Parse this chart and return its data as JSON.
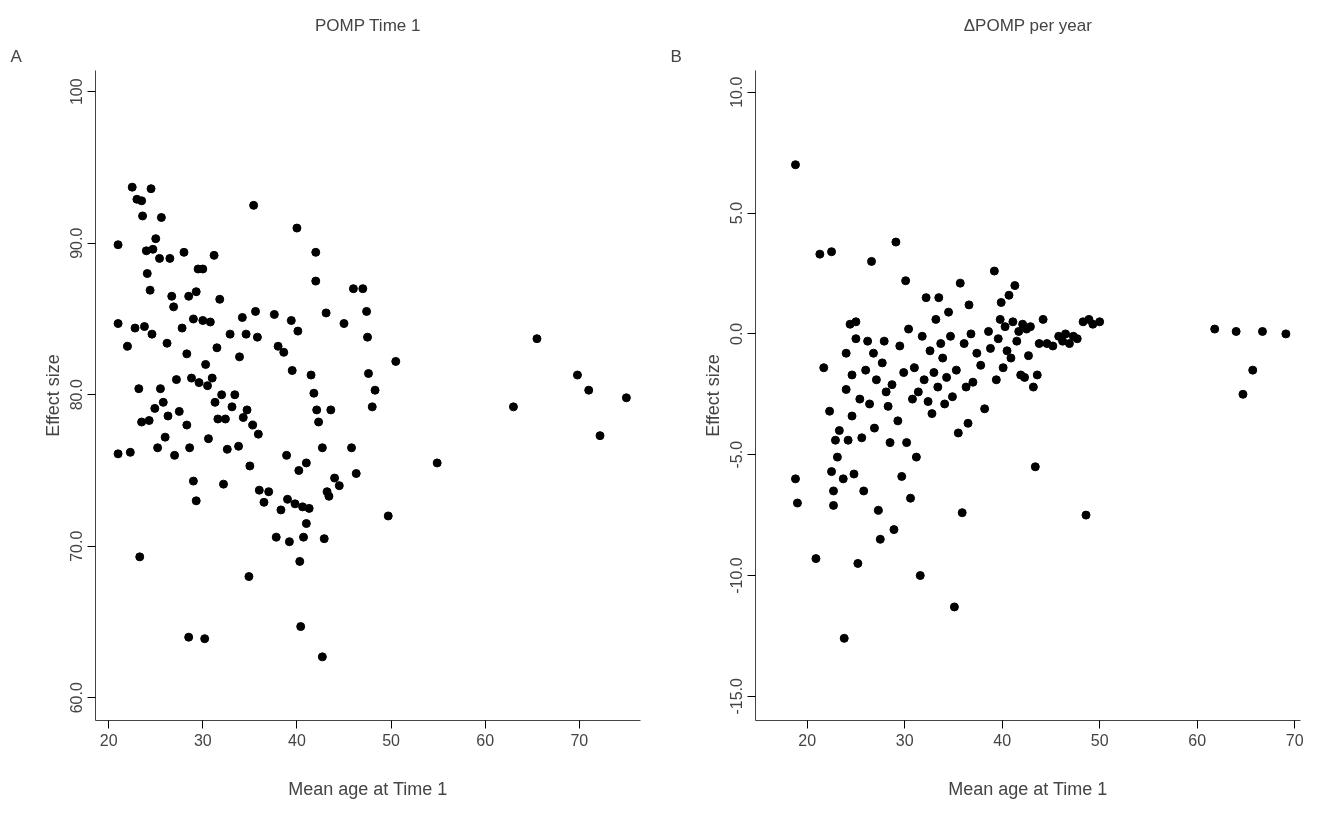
{
  "chart_data": [
    {
      "type": "scatter",
      "title": "POMP Time 1",
      "annotations": [
        "A"
      ],
      "xlabel": "Mean age at Time 1",
      "ylabel": "Effect size",
      "marker": "circle",
      "grid": false,
      "color": "#000000",
      "xlim": [
        18.6,
        76.5
      ],
      "ylim": [
        58.5,
        101.4
      ],
      "xticks": [
        20,
        30,
        40,
        50,
        60,
        70
      ],
      "yticks": [
        {
          "value": 60,
          "label": "60.0"
        },
        {
          "value": 70,
          "label": "70.0"
        },
        {
          "value": 80,
          "label": "80.0"
        },
        {
          "value": 90,
          "label": "90.0"
        },
        100
      ],
      "x": [
        21,
        21,
        21,
        22,
        22.3,
        22.5,
        22.8,
        23,
        23.2,
        23.3,
        23.5,
        23.6,
        23.5,
        23.8,
        24,
        24.1,
        24.3,
        24.4,
        24.5,
        24.6,
        24.7,
        24.9,
        25,
        25.2,
        25.4,
        25.6,
        25.5,
        25.8,
        26,
        26.2,
        26.3,
        26.5,
        26.7,
        26.9,
        27,
        27.2,
        27.5,
        27.8,
        28,
        28.3,
        28.5,
        28.3,
        28.5,
        28.6,
        28.8,
        29,
        29,
        29.3,
        29.3,
        29.5,
        29.6,
        30,
        30,
        30.2,
        30.3,
        30.5,
        30.6,
        30.8,
        31,
        31.2,
        31.3,
        31.5,
        31.6,
        31.8,
        32,
        32.2,
        32.4,
        32.6,
        32.9,
        33.1,
        33.4,
        33.8,
        33.9,
        34.2,
        34.3,
        34.6,
        34.7,
        34.9,
        35,
        35.3,
        35.4,
        35.6,
        35.8,
        35.9,
        36,
        36.5,
        37,
        37.6,
        37.8,
        38,
        38.3,
        38.6,
        38.9,
        39,
        39.2,
        39.4,
        39.5,
        39.8,
        40,
        40.1,
        40.2,
        40.3,
        40.4,
        40.6,
        40.7,
        41,
        41,
        41.3,
        41.5,
        41.8,
        42,
        42,
        42.1,
        42.3,
        42.7,
        42.7,
        42.9,
        43.1,
        43.2,
        43.4,
        43.6,
        44,
        44.5,
        45,
        45.8,
        46,
        46.3,
        47,
        47.4,
        47.5,
        47.6,
        48,
        48.3,
        49.7,
        50.5,
        54.9,
        63,
        65.5,
        69.8,
        71,
        72.2,
        75
      ],
      "values": [
        76.1,
        89.9,
        84.7,
        83.2,
        76.2,
        93.7,
        84.4,
        92.9,
        80.4,
        69.3,
        78.2,
        91.8,
        92.8,
        84.5,
        89.5,
        88,
        78.3,
        86.9,
        93.6,
        84,
        89.6,
        79.1,
        90.3,
        76.5,
        89,
        91.7,
        80.4,
        79.5,
        77.2,
        83.4,
        78.6,
        89,
        86.5,
        85.8,
        76,
        81,
        78.9,
        84.4,
        89.4,
        82.7,
        86.5,
        78,
        64,
        76.5,
        81.1,
        85,
        74.3,
        86.8,
        73,
        88.3,
        80.8,
        88.3,
        84.9,
        63.9,
        82,
        80.6,
        77.1,
        84.8,
        81.1,
        89.2,
        79.5,
        83.1,
        78.4,
        86.3,
        80,
        74.1,
        78.4,
        76.4,
        84,
        79.2,
        80,
        76.6,
        82.5,
        85.1,
        78.5,
        84,
        79,
        68,
        75.3,
        78,
        92.5,
        85.5,
        83.8,
        77.4,
        73.7,
        72.9,
        73.6,
        85.3,
        70.6,
        83.2,
        72.4,
        82.8,
        76,
        73.1,
        70.3,
        84.9,
        81.6,
        72.8,
        91,
        84.2,
        75,
        69,
        64.7,
        72.6,
        70.6,
        75.5,
        71.5,
        72.5,
        81.3,
        80.1,
        89.4,
        87.5,
        79,
        78.2,
        76.5,
        62.7,
        70.5,
        85.4,
        73.6,
        73.3,
        79,
        74.5,
        74,
        84.7,
        76.5,
        87,
        74.8,
        87,
        85.5,
        83.8,
        81.4,
        79.2,
        80.3,
        72,
        82.2,
        75.5,
        79.2,
        83.7,
        81.3,
        80.3,
        77.3,
        79.8
      ]
    },
    {
      "type": "scatter",
      "title": "ΔPOMP per year",
      "annotations": [
        "B"
      ],
      "xlabel": "Mean age at Time 1",
      "ylabel": "Effect size",
      "marker": "circle",
      "grid": false,
      "color": "#000000",
      "xlim": [
        14.7,
        70.6
      ],
      "ylim": [
        -16,
        10.9
      ],
      "xticks": [
        20,
        30,
        40,
        50,
        60,
        70
      ],
      "yticks": [
        {
          "value": -15,
          "label": "-15.0"
        },
        {
          "value": -10,
          "label": "-10.0"
        },
        {
          "value": -5,
          "label": "-5.0"
        },
        {
          "value": 0,
          "label": "0.0"
        },
        {
          "value": 5,
          "label": "5.0"
        },
        {
          "value": 10,
          "label": "10.0"
        }
      ],
      "x": [
        18.8,
        18.8,
        19.0,
        20.9,
        21.3,
        21.7,
        22.3,
        22.5,
        22.5,
        22.7,
        22.7,
        22.9,
        23.1,
        23.3,
        23.7,
        23.8,
        24.0,
        24.0,
        24.2,
        24.4,
        24.6,
        24.6,
        24.8,
        25.0,
        25.0,
        25.2,
        25.4,
        25.6,
        25.8,
        26.0,
        26.2,
        26.4,
        26.6,
        26.8,
        26.9,
        27.1,
        27.3,
        27.5,
        27.7,
        27.9,
        28.1,
        28.3,
        28.5,
        28.7,
        28.9,
        29.1,
        29.3,
        29.5,
        29.7,
        29.9,
        30.1,
        30.2,
        30.4,
        30.6,
        30.8,
        31.0,
        31.2,
        31.4,
        31.6,
        31.8,
        32.0,
        32.2,
        32.4,
        32.6,
        32.8,
        33.0,
        33.2,
        33.4,
        33.5,
        33.7,
        33.9,
        34.1,
        34.3,
        34.5,
        34.7,
        34.9,
        35.1,
        35.3,
        35.5,
        35.7,
        35.9,
        36.1,
        36.3,
        36.5,
        36.6,
        36.8,
        37.0,
        37.4,
        37.8,
        38.2,
        38.6,
        38.8,
        39.2,
        39.4,
        39.6,
        39.8,
        39.9,
        40.1,
        40.3,
        40.5,
        40.7,
        40.9,
        41.1,
        41.3,
        41.5,
        41.7,
        41.9,
        42.1,
        42.3,
        42.5,
        42.7,
        42.9,
        43.2,
        43.4,
        43.6,
        43.8,
        44.2,
        44.6,
        45.2,
        45.8,
        46.2,
        46.5,
        46.9,
        47.3,
        47.7,
        48.3,
        48.9,
        49.3,
        50.0,
        48.6,
        61.8,
        64.0,
        64.7,
        65.7,
        66.7,
        69.1
      ],
      "values": [
        7.0,
        -6.0,
        -7.0,
        -9.3,
        3.3,
        -1.4,
        -3.2,
        3.4,
        -5.7,
        -6.5,
        -7.1,
        -4.4,
        -5.1,
        -4.0,
        -6.0,
        -12.6,
        -2.3,
        -0.8,
        -4.4,
        0.4,
        -1.7,
        -3.4,
        -5.8,
        0.5,
        -0.2,
        -9.5,
        -2.7,
        -4.3,
        -6.5,
        -1.5,
        -0.3,
        -2.9,
        3.0,
        -0.8,
        -3.9,
        -1.9,
        -7.3,
        -8.5,
        -1.2,
        -0.3,
        -2.4,
        -3.0,
        -4.5,
        -2.1,
        -8.1,
        3.8,
        -3.6,
        -0.5,
        -5.9,
        -1.6,
        2.2,
        -4.5,
        0.2,
        -6.8,
        -2.7,
        -1.4,
        -5.1,
        -2.4,
        -10.0,
        -0.1,
        -1.9,
        1.5,
        -2.8,
        -0.7,
        -3.3,
        -1.6,
        0.6,
        -2.2,
        1.5,
        -0.4,
        -1.0,
        -2.9,
        -1.8,
        0.9,
        -0.1,
        -2.6,
        -11.3,
        -1.5,
        -4.1,
        2.1,
        -7.4,
        -0.4,
        -2.2,
        -3.7,
        1.2,
        0.0,
        -2.0,
        -0.8,
        -1.3,
        -3.1,
        0.1,
        -0.6,
        2.6,
        -1.9,
        -0.2,
        0.6,
        1.3,
        -1.4,
        0.3,
        -0.7,
        1.6,
        -1.0,
        0.5,
        2.0,
        -0.3,
        0.1,
        -1.7,
        0.4,
        -1.8,
        0.2,
        -0.9,
        0.3,
        -2.2,
        -5.5,
        -1.7,
        -0.4,
        0.6,
        -0.4,
        -0.5,
        -0.1,
        -0.3,
        0.0,
        -0.4,
        -0.1,
        -0.2,
        0.5,
        0.6,
        0.4,
        0.5,
        -7.5,
        0.2,
        0.1,
        -2.5,
        -1.5,
        0.1,
        0.0
      ]
    }
  ]
}
